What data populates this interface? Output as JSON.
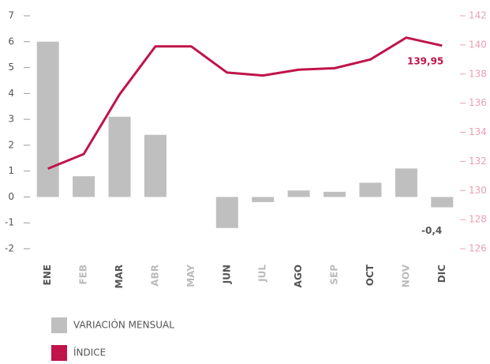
{
  "chart_data": {
    "type": "bar_line",
    "categories": [
      "ENE",
      "FEB",
      "MAR",
      "ABR",
      "MAY",
      "JUN",
      "JUL",
      "AGO",
      "SEP",
      "OCT",
      "NOV",
      "DIC"
    ],
    "category_colors": [
      "#555555",
      "#bbbbbb",
      "#555555",
      "#bbbbbb",
      "#bbbbbb",
      "#555555",
      "#bbbbbb",
      "#555555",
      "#bbbbbb",
      "#555555",
      "#bbbbbb",
      "#555555"
    ],
    "series": [
      {
        "name": "VARIACIÓN MENSUAL",
        "type": "bar",
        "color": "#bfbfbf",
        "axis": "y",
        "values": [
          6.0,
          0.8,
          3.1,
          2.4,
          0,
          -1.2,
          -0.2,
          0.25,
          0.2,
          0.55,
          1.1,
          -0.4
        ],
        "value_labels": [
          null,
          null,
          null,
          null,
          null,
          null,
          null,
          null,
          null,
          null,
          null,
          "-0,4"
        ]
      },
      {
        "name": "ÍNDICE",
        "type": "line",
        "color": "#c0144a",
        "axis": "y2",
        "values": [
          131.5,
          132.5,
          136.6,
          139.9,
          139.9,
          138.1,
          137.9,
          138.3,
          138.4,
          139.0,
          140.5,
          139.95
        ],
        "value_labels": [
          null,
          null,
          null,
          null,
          null,
          null,
          null,
          null,
          null,
          null,
          null,
          "139,95"
        ]
      }
    ],
    "ylim": [
      -2,
      7
    ],
    "yticks": [
      -2,
      -1,
      0,
      1,
      2,
      3,
      4,
      5,
      6,
      7
    ],
    "y2lim": [
      126,
      142
    ],
    "y2ticks": [
      126,
      128,
      130,
      132,
      134,
      136,
      138,
      140,
      142
    ],
    "y2color": "#e8a0b4"
  }
}
